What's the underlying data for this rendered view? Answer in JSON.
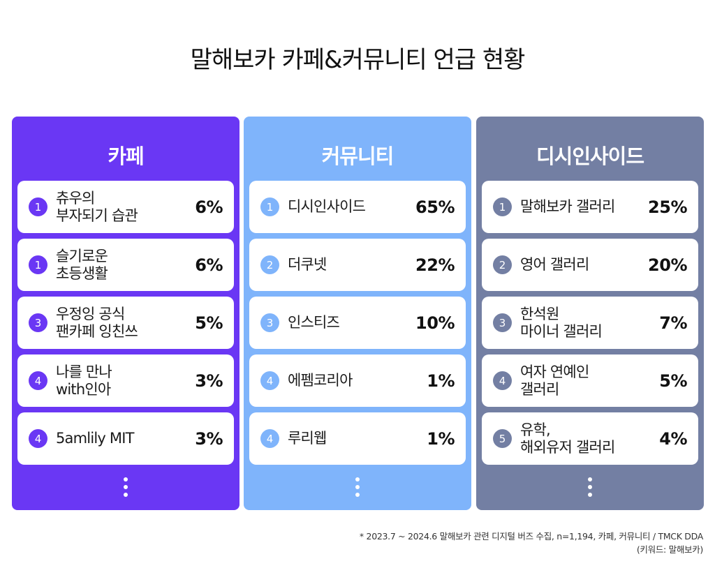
{
  "title": "말해보카 카페&커뮤니티 언급 현황",
  "colors": {
    "cafe": "#6a37f4",
    "community": "#7fb4fb",
    "dcinside": "#737fa3"
  },
  "chart_data": {
    "type": "table",
    "title": "말해보카 카페&커뮤니티 언급 현황",
    "panels": [
      {
        "title": "카페",
        "items": [
          {
            "rank": "1",
            "name": "츄우의\n부자되기 습관",
            "percent": "6%"
          },
          {
            "rank": "1",
            "name": "슬기로운\n초등생활",
            "percent": "6%"
          },
          {
            "rank": "3",
            "name": "우정잉 공식\n팬카페 잉친쓰",
            "percent": "5%"
          },
          {
            "rank": "4",
            "name": "나를 만나\nwith인아",
            "percent": "3%"
          },
          {
            "rank": "4",
            "name": "5amlily MIT",
            "percent": "3%"
          }
        ]
      },
      {
        "title": "커뮤니티",
        "items": [
          {
            "rank": "1",
            "name": "디시인사이드",
            "percent": "65%"
          },
          {
            "rank": "2",
            "name": "더쿠넷",
            "percent": "22%"
          },
          {
            "rank": "3",
            "name": "인스티즈",
            "percent": "10%"
          },
          {
            "rank": "4",
            "name": "에펨코리아",
            "percent": "1%"
          },
          {
            "rank": "4",
            "name": "루리웹",
            "percent": "1%"
          }
        ]
      },
      {
        "title": "디시인사이드",
        "items": [
          {
            "rank": "1",
            "name": "말해보카 갤러리",
            "percent": "25%"
          },
          {
            "rank": "2",
            "name": "영어 갤러리",
            "percent": "20%"
          },
          {
            "rank": "3",
            "name": "한석원\n마이너 갤러리",
            "percent": "7%"
          },
          {
            "rank": "4",
            "name": "여자 연예인\n갤러리",
            "percent": "5%"
          },
          {
            "rank": "5",
            "name": "유학,\n해외유저 갤러리",
            "percent": "4%"
          }
        ]
      }
    ]
  },
  "footnote": {
    "line1": "* 2023.7 ~ 2024.6 말해보카 관련 디지털 버즈 수집, n=1,194, 카페, 커뮤니티 / TMCK DDA",
    "line2": "(키워드: 말해보카)"
  }
}
